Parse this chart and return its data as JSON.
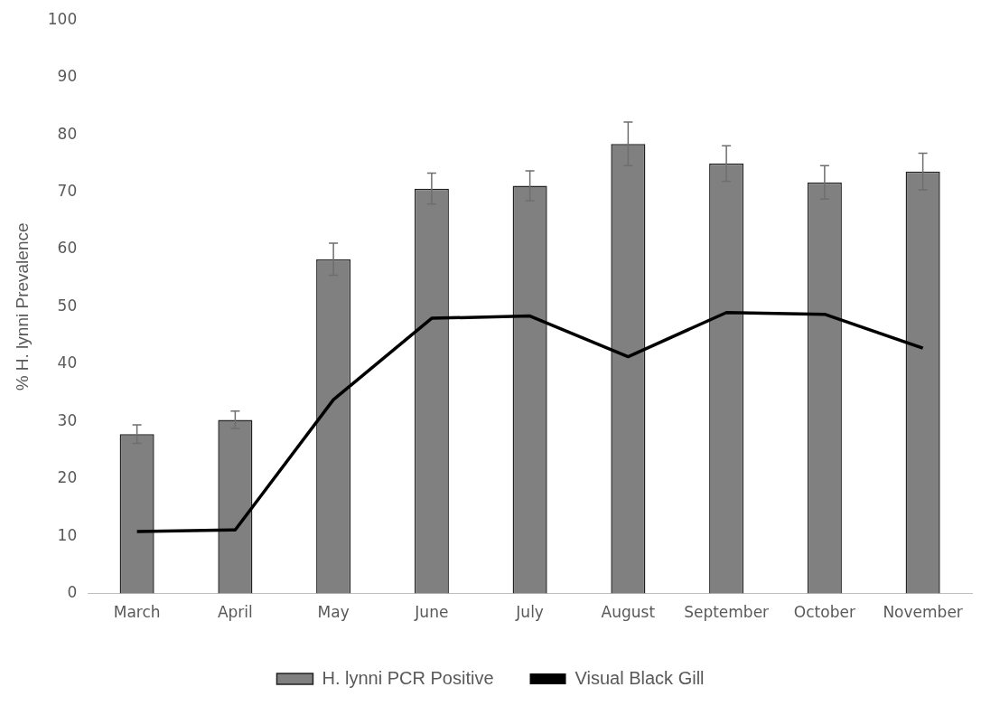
{
  "chart_data": {
    "type": "bar",
    "ylabel": "% H. lynni Prevalence",
    "categories": [
      "March",
      "April",
      "May",
      "June",
      "July",
      "August",
      "September",
      "October",
      "November"
    ],
    "series": [
      {
        "name": "H. lynni PCR Positive",
        "color": "#808080",
        "values": [
          27.8,
          30.3,
          58.3,
          70.6,
          71.1,
          78.4,
          75.0,
          71.7,
          73.6
        ],
        "errors": [
          1.6,
          1.5,
          2.8,
          2.7,
          2.6,
          3.8,
          3.1,
          2.9,
          3.2
        ]
      },
      {
        "name": "Visual Black Gill",
        "type": "line",
        "color": "#000000",
        "values": [
          10.8,
          11.1,
          33.8,
          48.0,
          48.4,
          41.3,
          49.0,
          48.7,
          42.8
        ]
      }
    ],
    "ylim": [
      0,
      100
    ],
    "yticks": [
      0,
      10,
      20,
      30,
      40,
      50,
      60,
      70,
      80,
      90,
      100
    ],
    "grid": false,
    "legend": "bottom",
    "marker": "none",
    "line_style": "solid"
  }
}
